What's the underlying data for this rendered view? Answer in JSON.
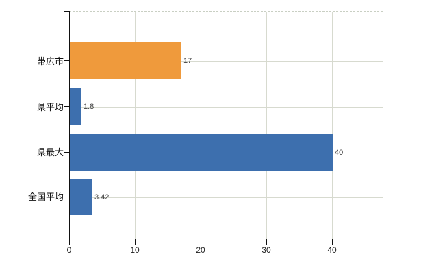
{
  "chart_data": {
    "type": "bar",
    "orientation": "horizontal",
    "title": "",
    "categories": [
      "帯広市",
      "県平均",
      "県最大",
      "全国平均"
    ],
    "values": [
      17,
      1.8,
      40,
      3.42
    ],
    "value_labels": [
      "17",
      "1.8",
      "40",
      "3.42"
    ],
    "bar_colors": [
      "#ef9a3c",
      "#3d6fae",
      "#3d6fae",
      "#3d6fae"
    ],
    "x_ticks": [
      0,
      10,
      20,
      30,
      40
    ],
    "x_tick_labels": [
      "0",
      "10",
      "20",
      "30",
      "40"
    ],
    "xlim": [
      0,
      47.7
    ],
    "grid": true,
    "legend": false,
    "plot_border_top": "dashed",
    "gridline_color": "#d7dacf",
    "axis_color": "#111111"
  }
}
